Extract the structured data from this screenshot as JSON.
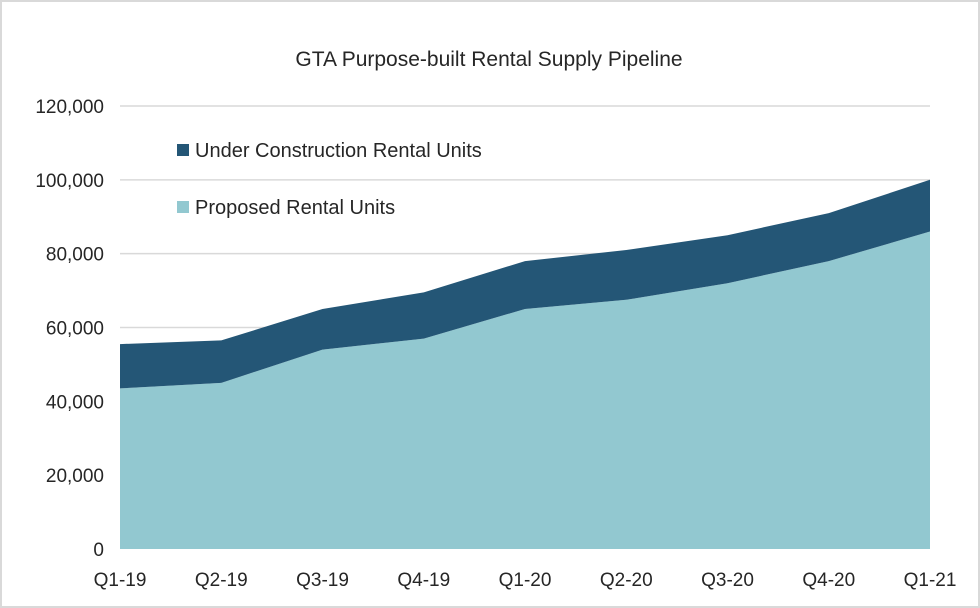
{
  "chart_data": {
    "type": "area",
    "stacked": true,
    "title": "GTA Purpose-built Rental Supply Pipeline",
    "categories": [
      "Q1-19",
      "Q2-19",
      "Q3-19",
      "Q4-19",
      "Q1-20",
      "Q2-20",
      "Q3-20",
      "Q4-20",
      "Q1-21"
    ],
    "series": [
      {
        "name": "Proposed Rental Units",
        "color": "#92C8D0",
        "values": [
          43500,
          45000,
          54000,
          57000,
          65000,
          67500,
          72000,
          78000,
          86000
        ]
      },
      {
        "name": "Under Construction Rental Units",
        "color": "#245676",
        "values": [
          12000,
          11500,
          11000,
          12500,
          13000,
          13500,
          13000,
          13000,
          14000
        ]
      }
    ],
    "ylim": [
      0,
      120000
    ],
    "yticks": [
      "0",
      "20,000",
      "40,000",
      "60,000",
      "80,000",
      "100,000",
      "120,000"
    ],
    "grid": true,
    "legend_position": "top-left, inside plot",
    "legend_order": [
      "Under Construction Rental Units",
      "Proposed Rental Units"
    ],
    "gridline_color": "#d9d9d9"
  }
}
